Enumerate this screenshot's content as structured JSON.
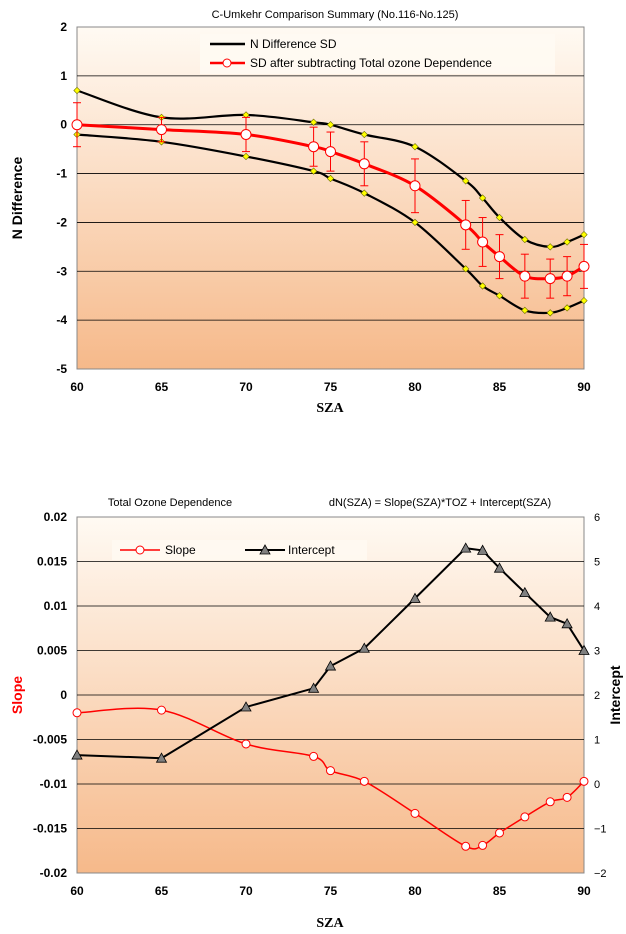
{
  "chart_data": [
    {
      "type": "line",
      "title": "C-Umkehr Comparison Summary (No.116-No.125)",
      "xlabel": "SZA",
      "ylabel": "N Difference",
      "xlim": [
        60,
        90
      ],
      "ylim": [
        -5,
        2
      ],
      "xticks": [
        "60",
        "65",
        "70",
        "75",
        "80",
        "85",
        "90"
      ],
      "yticks": [
        "2",
        "1",
        "0",
        "-1",
        "-2",
        "-3",
        "-4",
        "-5"
      ],
      "legend": "top-center",
      "colors": {
        "sd_band": "#000000",
        "corrected": "#ff0000",
        "markers": "#ffff00",
        "plot_bg_top": "#fffaf3",
        "plot_bg_bottom": "#f6b98a"
      },
      "series": [
        {
          "name": "N Difference SD",
          "role": "band",
          "upper": {
            "x": [
              60,
              65,
              70,
              74,
              75,
              77,
              80,
              83,
              84,
              85,
              86.5,
              88,
              89,
              90
            ],
            "y": [
              0.7,
              0.15,
              0.2,
              0.05,
              0.0,
              -0.2,
              -0.45,
              -1.15,
              -1.5,
              -1.9,
              -2.35,
              -2.5,
              -2.4,
              -2.25
            ]
          },
          "lower": {
            "x": [
              60,
              65,
              70,
              74,
              75,
              77,
              80,
              83,
              84,
              85,
              86.5,
              88,
              89,
              90
            ],
            "y": [
              -0.2,
              -0.35,
              -0.65,
              -0.95,
              -1.1,
              -1.4,
              -2.0,
              -2.95,
              -3.3,
              -3.5,
              -3.8,
              -3.85,
              -3.75,
              -3.6
            ]
          }
        },
        {
          "name": "SD after subtracting Total ozone Dependence",
          "x": [
            60,
            65,
            70,
            74,
            75,
            77,
            80,
            83,
            84,
            85,
            86.5,
            88,
            89,
            90
          ],
          "y": [
            0.0,
            -0.1,
            -0.2,
            -0.45,
            -0.55,
            -0.8,
            -1.25,
            -2.05,
            -2.4,
            -2.7,
            -3.1,
            -3.15,
            -3.1,
            -2.9
          ],
          "err": [
            0.45,
            0.25,
            0.35,
            0.4,
            0.4,
            0.45,
            0.55,
            0.5,
            0.5,
            0.45,
            0.45,
            0.4,
            0.4,
            0.45
          ]
        }
      ]
    },
    {
      "type": "line",
      "title": "Total Ozone Dependence",
      "annotation": "dN(SZA) = Slope(SZA)*TOZ + Intercept(SZA)",
      "xlabel": "SZA",
      "ylabel": "Slope",
      "ylabel_right": "Intercept",
      "xlim": [
        60,
        90
      ],
      "ylim": [
        -0.02,
        0.02
      ],
      "ylim_right": [
        -2,
        6
      ],
      "xticks": [
        "60",
        "65",
        "70",
        "75",
        "80",
        "85",
        "90"
      ],
      "yticks": [
        "0.02",
        "0.015",
        "0.01",
        "0.005",
        "0",
        "-0.005",
        "-0.01",
        "-0.015",
        "-0.02"
      ],
      "yticks_right": [
        "6",
        "5",
        "4",
        "3",
        "2",
        "1",
        "0",
        "-1",
        "-2"
      ],
      "legend": "top-left",
      "colors": {
        "slope": "#ff0000",
        "intercept": "#000000",
        "plot_bg_top": "#fffaf3",
        "plot_bg_bottom": "#f6b98a"
      },
      "series": [
        {
          "name": "Slope",
          "axis": "left",
          "x": [
            60,
            65,
            70,
            74,
            75,
            77,
            80,
            83,
            84,
            85,
            86.5,
            88,
            89,
            90
          ],
          "y": [
            -0.002,
            -0.0017,
            -0.0055,
            -0.0069,
            -0.0085,
            -0.0097,
            -0.0133,
            -0.017,
            -0.0169,
            -0.0155,
            -0.0137,
            -0.012,
            -0.0115,
            -0.0097
          ]
        },
        {
          "name": "Intercept",
          "axis": "right",
          "x": [
            60,
            65,
            70,
            74,
            75,
            77,
            80,
            83,
            84,
            85,
            86.5,
            88,
            89,
            90
          ],
          "y": [
            0.65,
            0.58,
            1.73,
            2.15,
            2.65,
            3.05,
            4.17,
            5.3,
            5.25,
            4.85,
            4.3,
            3.75,
            3.6,
            3.0
          ]
        }
      ]
    }
  ]
}
